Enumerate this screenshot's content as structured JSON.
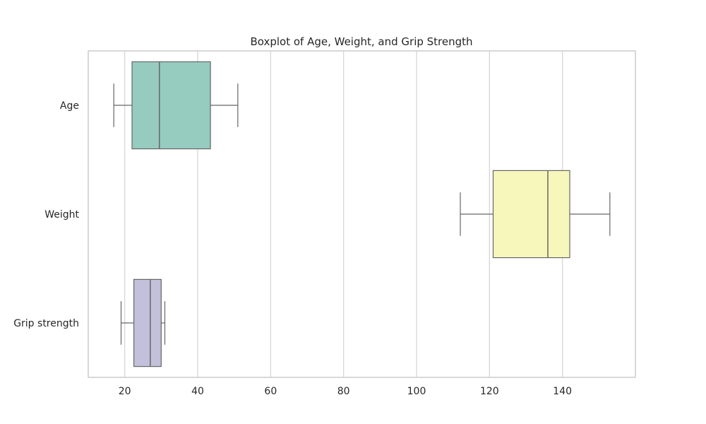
{
  "chart_data": {
    "type": "boxplot",
    "orientation": "horizontal",
    "title": "Boxplot of Age, Weight, and Grip Strength",
    "xlabel": "",
    "ylabel": "",
    "xlim": [
      10,
      160
    ],
    "xticks": [
      20,
      40,
      60,
      80,
      100,
      120,
      140
    ],
    "xtick_labels": [
      "20",
      "40",
      "60",
      "80",
      "100",
      "120",
      "140"
    ],
    "grid": "vertical",
    "categories": [
      "Age",
      "Weight",
      "Grip strength"
    ],
    "boxes": [
      {
        "category": "Age",
        "whisker_low": 17,
        "q1": 22,
        "median": 29.5,
        "q3": 43.5,
        "whisker_high": 51,
        "color": "#96cbbf"
      },
      {
        "category": "Weight",
        "whisker_low": 112,
        "q1": 121,
        "median": 136,
        "q3": 142,
        "whisker_high": 153,
        "color": "#f7f7bb"
      },
      {
        "category": "Grip strength",
        "whisker_low": 19,
        "q1": 22.5,
        "median": 27,
        "q3": 30,
        "whisker_high": 31,
        "color": "#c3c0dc"
      }
    ],
    "line_color": "#666666",
    "grid_color": "#d3d3d3",
    "frame_color": "#cccccc"
  }
}
